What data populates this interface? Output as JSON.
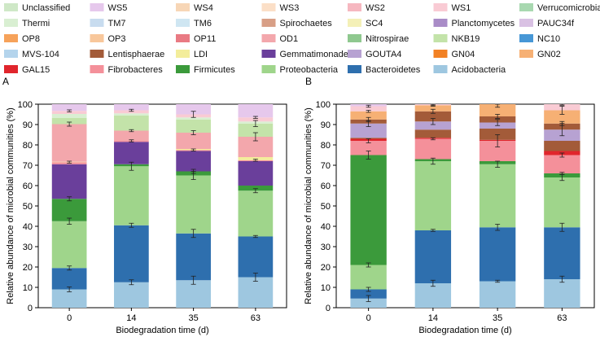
{
  "legend": [
    {
      "label": "Unclassified",
      "color": "#cfe8c7"
    },
    {
      "label": "WS5",
      "color": "#e6c8ec"
    },
    {
      "label": "WS4",
      "color": "#f7d6b6"
    },
    {
      "label": "WS3",
      "color": "#fbdfc7"
    },
    {
      "label": "WS2",
      "color": "#f6b7c0"
    },
    {
      "label": "WS1",
      "color": "#f9cbd4"
    },
    {
      "label": "Verrucomicrobia",
      "color": "#a8d8b0"
    },
    {
      "label": "Thermi",
      "color": "#d9efd2"
    },
    {
      "label": "TM7",
      "color": "#c8dcef"
    },
    {
      "label": "TM6",
      "color": "#cfe6f2"
    },
    {
      "label": "Spirochaetes",
      "color": "#d89f86"
    },
    {
      "label": "SC4",
      "color": "#f4f0b7"
    },
    {
      "label": "Planctomycetes",
      "color": "#a98cc7"
    },
    {
      "label": "PAUC34f",
      "color": "#d9c1e3"
    },
    {
      "label": "OP8",
      "color": "#f6a25a"
    },
    {
      "label": "OP3",
      "color": "#f8c79b"
    },
    {
      "label": "OP11",
      "color": "#e97a83"
    },
    {
      "label": "OD1",
      "color": "#f3a7ac"
    },
    {
      "label": "Nitrospirae",
      "color": "#8fc88f"
    },
    {
      "label": "NKB19",
      "color": "#c3e3a9"
    },
    {
      "label": "NC10",
      "color": "#4797d6"
    },
    {
      "label": "MVS-104",
      "color": "#b4d4ec"
    },
    {
      "label": "Lentisphaerae",
      "color": "#a35b39"
    },
    {
      "label": "LDI",
      "color": "#f3ed9b"
    },
    {
      "label": "Gemmatimonadetes",
      "color": "#6a3f9b"
    },
    {
      "label": "GOUTA4",
      "color": "#b7a2d2"
    },
    {
      "label": "GN04",
      "color": "#f28124"
    },
    {
      "label": "GN02",
      "color": "#f6b074"
    },
    {
      "label": "GAL15",
      "color": "#e0252c"
    },
    {
      "label": "Fibrobacteres",
      "color": "#f4909a"
    },
    {
      "label": "Firmicutes",
      "color": "#3b9a3b"
    },
    {
      "label": "Proteobacteria",
      "color": "#9fd58b"
    },
    {
      "label": "Bacteroidetes",
      "color": "#2e6fae"
    },
    {
      "label": "Acidobacteria",
      "color": "#9ec7e0"
    }
  ],
  "chart_data": [
    {
      "panel_label": "A",
      "type": "bar",
      "stacked": true,
      "categories": [
        "0",
        "14",
        "35",
        "63"
      ],
      "xlabel": "Biodegradation time (d)",
      "ylabel": "Relative abundance of microbial communities (%)",
      "ylim": [
        0,
        100
      ],
      "yticks": [
        0,
        10,
        20,
        30,
        40,
        50,
        60,
        70,
        80,
        90,
        100
      ],
      "series": [
        {
          "name": "Acidobacteria",
          "values": [
            9,
            12.5,
            13.5,
            15
          ],
          "errors": [
            1.2,
            1.2,
            2,
            2
          ]
        },
        {
          "name": "Bacteroidetes",
          "values": [
            10.5,
            28,
            23,
            20
          ],
          "errors": [
            1,
            1,
            2,
            0.5
          ]
        },
        {
          "name": "Proteobacteria",
          "values": [
            23,
            29,
            28.5,
            22.5
          ],
          "errors": [
            1.5,
            2,
            2,
            1
          ]
        },
        {
          "name": "Firmicutes",
          "values": [
            11,
            1,
            2,
            2.5
          ],
          "errors": [
            1,
            0,
            1,
            0
          ]
        },
        {
          "name": "Gemmatimonadetes",
          "values": [
            17,
            11,
            10,
            12
          ],
          "errors": [
            0,
            0,
            0,
            0
          ]
        },
        {
          "name": "Fibrobacteres",
          "values": [
            1,
            0.5,
            0.5,
            0.5
          ],
          "errors": [
            0.5,
            0.5,
            0.5,
            0.5
          ]
        },
        {
          "name": "LDI",
          "values": [
            0.2,
            0,
            0.5,
            1.5
          ],
          "errors": [
            0,
            0,
            0,
            0
          ]
        },
        {
          "name": "OD1",
          "values": [
            18.5,
            5,
            8,
            10
          ],
          "errors": [
            1,
            0.5,
            1,
            2
          ]
        },
        {
          "name": "NKB19",
          "values": [
            3,
            7.5,
            6.5,
            6.5
          ],
          "errors": [
            0,
            0,
            0,
            1.5
          ]
        },
        {
          "name": "Thermi",
          "values": [
            2,
            1,
            1,
            1
          ],
          "errors": [
            0,
            0,
            0,
            0
          ]
        },
        {
          "name": "WS1",
          "values": [
            1.5,
            1.5,
            1.5,
            2
          ],
          "errors": [
            0.5,
            0.5,
            1.5,
            0.5
          ]
        },
        {
          "name": "WS5",
          "values": [
            3.3,
            3,
            5.5,
            6.5
          ],
          "errors": [
            0,
            0,
            0,
            0
          ]
        }
      ]
    },
    {
      "panel_label": "B",
      "type": "bar",
      "stacked": true,
      "categories": [
        "0",
        "14",
        "35",
        "63"
      ],
      "xlabel": "Biodegradation time (d)",
      "ylabel": "Relative abundance of microbial communities (%)",
      "ylim": [
        0,
        100
      ],
      "yticks": [
        0,
        10,
        20,
        30,
        40,
        50,
        60,
        70,
        80,
        90,
        100
      ],
      "series": [
        {
          "name": "Acidobacteria",
          "values": [
            4.5,
            12,
            13,
            14
          ],
          "errors": [
            1.5,
            1.5,
            0.5,
            1.5
          ]
        },
        {
          "name": "Bacteroidetes",
          "values": [
            4.5,
            26,
            26.5,
            25.5
          ],
          "errors": [
            1,
            0.5,
            1.5,
            2
          ]
        },
        {
          "name": "Proteobacteria",
          "values": [
            12,
            34,
            31,
            24.5
          ],
          "errors": [
            1,
            1.5,
            1.5,
            1.5
          ]
        },
        {
          "name": "Firmicutes",
          "values": [
            54,
            1,
            1.5,
            2
          ],
          "errors": [
            2,
            0,
            0,
            0.5
          ]
        },
        {
          "name": "Fibrobacteres",
          "values": [
            7,
            10,
            10,
            9
          ],
          "errors": [
            1,
            0.5,
            3,
            1
          ]
        },
        {
          "name": "GAL15",
          "values": [
            1,
            0.5,
            0.5,
            2
          ],
          "errors": [
            0,
            0,
            0,
            0
          ]
        },
        {
          "name": "Lentisphaerae",
          "values": [
            0.5,
            4,
            5.5,
            5
          ],
          "errors": [
            0,
            0,
            0,
            0
          ]
        },
        {
          "name": "GOUTA4",
          "values": [
            7,
            4,
            3,
            5.5
          ],
          "errors": [
            1.5,
            1.5,
            1.5,
            3
          ]
        },
        {
          "name": "Lentisphaerae",
          "values": [
            2,
            5,
            3,
            3
          ],
          "errors": [
            1,
            1,
            1,
            1
          ]
        },
        {
          "name": "GN02",
          "values": [
            4,
            3,
            6,
            6.5
          ],
          "errors": [
            0.5,
            0.5,
            1.5,
            2
          ]
        },
        {
          "name": "WS1",
          "values": [
            2.5,
            0.5,
            0.5,
            3
          ],
          "errors": [
            0.5,
            0.5,
            0.5,
            0.5
          ]
        },
        {
          "name": "WS5",
          "values": [
            1,
            0,
            0,
            0
          ],
          "errors": [
            0,
            0,
            0,
            0
          ]
        }
      ]
    }
  ]
}
